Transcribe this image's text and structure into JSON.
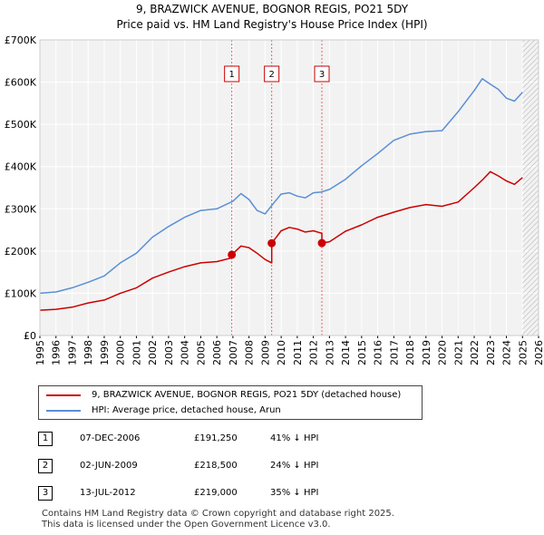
{
  "title": "9, BRAZWICK AVENUE, BOGNOR REGIS, PO21 5DY",
  "subtitle": "Price paid vs. HM Land Registry's House Price Index (HPI)",
  "chart_data": {
    "type": "line",
    "title": "9, BRAZWICK AVENUE, BOGNOR REGIS, PO21 5DY",
    "subtitle": "Price paid vs. HM Land Registry's House Price Index (HPI)",
    "xlim": [
      1995,
      2026
    ],
    "ylim": [
      0,
      700000
    ],
    "x_ticks": [
      "1995",
      "1996",
      "1997",
      "1998",
      "1999",
      "2000",
      "2001",
      "2002",
      "2003",
      "2004",
      "2005",
      "2006",
      "2007",
      "2008",
      "2009",
      "2010",
      "2011",
      "2012",
      "2013",
      "2014",
      "2015",
      "2016",
      "2017",
      "2018",
      "2019",
      "2020",
      "2021",
      "2022",
      "2023",
      "2024",
      "2025",
      "2026"
    ],
    "y_ticks": [
      {
        "value": 0,
        "label": "£0"
      },
      {
        "value": 100000,
        "label": "£100K"
      },
      {
        "value": 200000,
        "label": "£200K"
      },
      {
        "value": 300000,
        "label": "£300K"
      },
      {
        "value": 400000,
        "label": "£400K"
      },
      {
        "value": 500000,
        "label": "£500K"
      },
      {
        "value": 600000,
        "label": "£600K"
      },
      {
        "value": 700000,
        "label": "£700K"
      }
    ],
    "grid": true,
    "hatched_from": 2025.0,
    "series": [
      {
        "name": "9, BRAZWICK AVENUE, BOGNOR REGIS, PO21 5DY (detached house)",
        "color": "#cc0000",
        "x": [
          1995.0,
          1996.0,
          1997.0,
          1998.0,
          1999.0,
          2000.0,
          2001.0,
          2002.0,
          2003.0,
          2004.0,
          2005.0,
          2006.0,
          2006.93,
          2006.93,
          2007.5,
          2008.0,
          2008.5,
          2009.0,
          2009.41,
          2009.41,
          2010.0,
          2010.5,
          2011.0,
          2011.5,
          2012.0,
          2012.53,
          2012.53,
          2013.0,
          2014.0,
          2015.0,
          2016.0,
          2017.0,
          2018.0,
          2019.0,
          2020.0,
          2021.0,
          2022.0,
          2022.5,
          2023.0,
          2023.5,
          2024.0,
          2024.5,
          2025.0
        ],
        "y": [
          60000,
          62000,
          67000,
          77000,
          84000,
          100000,
          113000,
          136000,
          150000,
          163000,
          172000,
          175000,
          184000,
          191250,
          212000,
          208000,
          195000,
          180000,
          172000,
          218500,
          248000,
          256000,
          252000,
          245000,
          248000,
          242000,
          219000,
          222000,
          247000,
          262000,
          280000,
          292000,
          303000,
          310000,
          306000,
          316000,
          350000,
          368000,
          388000,
          378000,
          366000,
          358000,
          374000
        ]
      },
      {
        "name": "HPI: Average price, detached house, Arun",
        "color": "#5a8fd6",
        "x": [
          1995.0,
          1996.0,
          1997.0,
          1998.0,
          1999.0,
          2000.0,
          2001.0,
          2002.0,
          2003.0,
          2004.0,
          2005.0,
          2006.0,
          2007.0,
          2007.5,
          2008.0,
          2008.5,
          2009.0,
          2009.5,
          2010.0,
          2010.5,
          2011.0,
          2011.5,
          2012.0,
          2012.5,
          2013.0,
          2014.0,
          2015.0,
          2016.0,
          2017.0,
          2018.0,
          2019.0,
          2020.0,
          2021.0,
          2022.0,
          2022.5,
          2023.0,
          2023.5,
          2024.0,
          2024.5,
          2025.0
        ],
        "y": [
          100000,
          103000,
          113000,
          126000,
          141000,
          172000,
          195000,
          233000,
          258000,
          280000,
          296000,
          300000,
          318000,
          336000,
          322000,
          296000,
          288000,
          312000,
          335000,
          338000,
          330000,
          326000,
          338000,
          340000,
          346000,
          370000,
          402000,
          431000,
          462000,
          477000,
          483000,
          485000,
          530000,
          580000,
          608000,
          595000,
          583000,
          562000,
          555000,
          576000
        ]
      }
    ],
    "sales": [
      {
        "label": "1",
        "x": 2006.93,
        "value": 191250
      },
      {
        "label": "2",
        "x": 2009.41,
        "value": 218500
      },
      {
        "label": "3",
        "x": 2012.53,
        "value": 219000
      }
    ]
  },
  "legend": {
    "property_label": "9, BRAZWICK AVENUE, BOGNOR REGIS, PO21 5DY (detached house)",
    "hpi_label": "HPI: Average price, detached house, Arun",
    "property_color": "#cc0000",
    "hpi_color": "#5a8fd6"
  },
  "transactions": [
    {
      "num": "1",
      "date": "07-DEC-2006",
      "price": "£191,250",
      "hpi": "41% ↓ HPI"
    },
    {
      "num": "2",
      "date": "02-JUN-2009",
      "price": "£218,500",
      "hpi": "24% ↓ HPI"
    },
    {
      "num": "3",
      "date": "13-JUL-2012",
      "price": "£219,000",
      "hpi": "35% ↓ HPI"
    }
  ],
  "footer": {
    "line1": "Contains HM Land Registry data © Crown copyright and database right 2025.",
    "line2": "This data is licensed under the Open Government Licence v3.0."
  }
}
